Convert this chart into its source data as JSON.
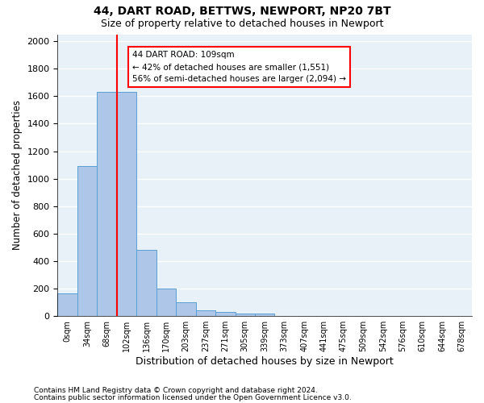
{
  "title1": "44, DART ROAD, BETTWS, NEWPORT, NP20 7BT",
  "title2": "Size of property relative to detached houses in Newport",
  "xlabel": "Distribution of detached houses by size in Newport",
  "ylabel": "Number of detached properties",
  "categories": [
    "0sqm",
    "34sqm",
    "68sqm",
    "102sqm",
    "136sqm",
    "170sqm",
    "203sqm",
    "237sqm",
    "271sqm",
    "305sqm",
    "339sqm",
    "373sqm",
    "407sqm",
    "441sqm",
    "475sqm",
    "509sqm",
    "542sqm",
    "576sqm",
    "610sqm",
    "644sqm",
    "678sqm"
  ],
  "bar_values": [
    163,
    1090,
    1630,
    1630,
    480,
    200,
    100,
    45,
    30,
    20,
    20,
    0,
    0,
    0,
    0,
    0,
    0,
    0,
    0,
    0,
    0
  ],
  "bar_color": "#aec6e8",
  "bar_edge_color": "#5a9fd4",
  "background_color": "#e8f0f8",
  "grid_color": "#ffffff",
  "vline_x_index": 3,
  "vline_color": "red",
  "annotation_text": "44 DART ROAD: 109sqm\n← 42% of detached houses are smaller (1,551)\n56% of semi-detached houses are larger (2,094) →",
  "annotation_box_color": "white",
  "annotation_box_edge": "red",
  "ylim": [
    0,
    2050
  ],
  "yticks": [
    0,
    200,
    400,
    600,
    800,
    1000,
    1200,
    1400,
    1600,
    1800,
    2000
  ],
  "footnote1": "Contains HM Land Registry data © Crown copyright and database right 2024.",
  "footnote2": "Contains public sector information licensed under the Open Government Licence v3.0."
}
